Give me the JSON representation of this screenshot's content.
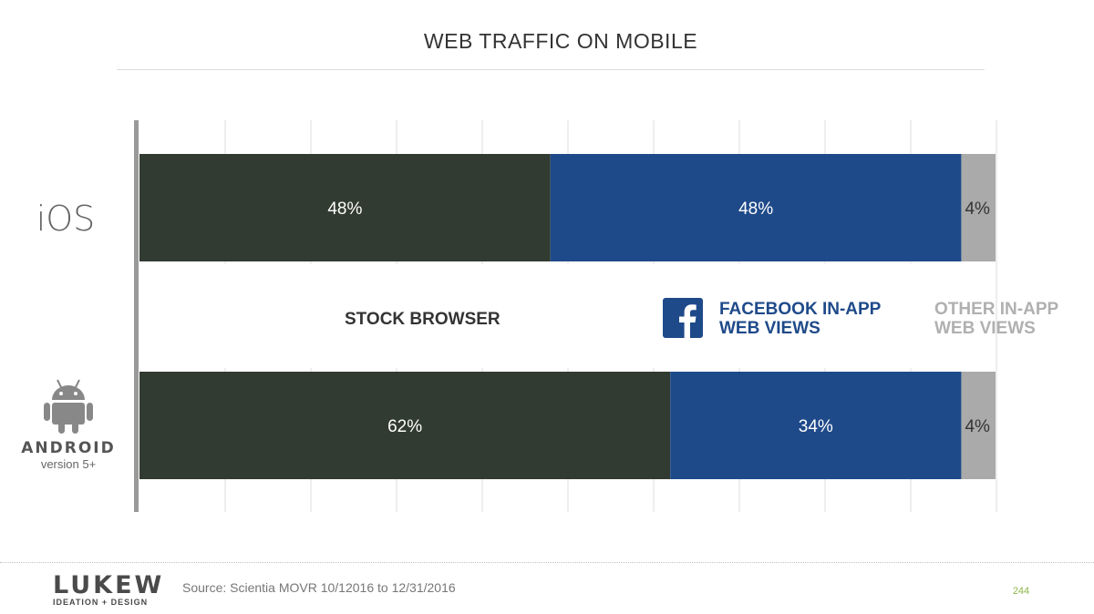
{
  "title": "WEB TRAFFIC ON MOBILE",
  "platforms": {
    "ios": "iOS",
    "android_word": "ANDROID",
    "android_version": "version 5+"
  },
  "legend": {
    "stock": "STOCK BROWSER",
    "facebook_line1": "FACEBOOK IN-APP",
    "facebook_line2": "WEB VIEWS",
    "other_line1": "OTHER IN-APP",
    "other_line2": "WEB VIEWS"
  },
  "footer": {
    "logo_main": "LUKEW",
    "logo_sub": "IDEATION + DESIGN",
    "source": "Source: Scientia MOVR 10/12016 to 12/31/2016",
    "page_number": "244"
  },
  "colors": {
    "stock": "#323b31",
    "facebook": "#1f4a8a",
    "other": "#aaaaaa",
    "axis": "#999999",
    "grid": "#dddddd"
  },
  "chart_data": {
    "type": "bar",
    "orientation": "horizontal",
    "stacked": true,
    "categories": [
      "iOS",
      "Android version 5+"
    ],
    "series": [
      {
        "name": "STOCK BROWSER",
        "values": [
          48,
          62
        ],
        "labels": [
          "48%",
          "62%"
        ]
      },
      {
        "name": "FACEBOOK IN-APP WEB VIEWS",
        "values": [
          48,
          34
        ],
        "labels": [
          "48%",
          "34%"
        ]
      },
      {
        "name": "OTHER IN-APP WEB VIEWS",
        "values": [
          4,
          4
        ],
        "labels": [
          "4%",
          "4%"
        ]
      }
    ],
    "title": "WEB TRAFFIC ON MOBILE",
    "xlim": [
      0,
      100
    ],
    "grid": true
  }
}
